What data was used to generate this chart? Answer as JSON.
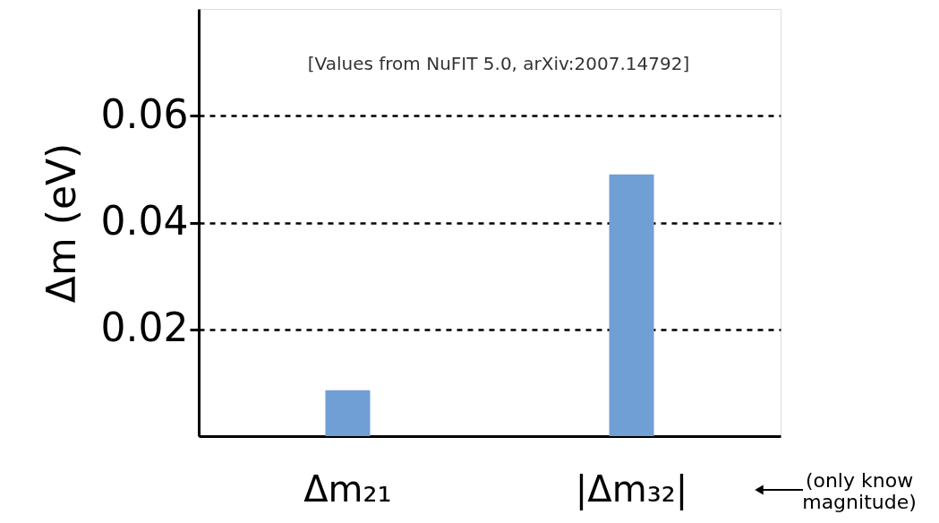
{
  "chart_data": {
    "type": "bar",
    "ylabel": "Δm (eV)",
    "categories": [
      "Δm₂₁",
      "|Δm₃₂|"
    ],
    "values": [
      0.0086,
      0.049
    ],
    "color": "#6f9fd4",
    "ylim": [
      0,
      0.08
    ],
    "yticks": [
      0.02,
      0.04,
      0.06
    ],
    "grid": "y",
    "annotations": [
      "[Values from NuFIT 5.0,  arXiv:2007.14792]",
      "(only know magnitude)"
    ]
  }
}
